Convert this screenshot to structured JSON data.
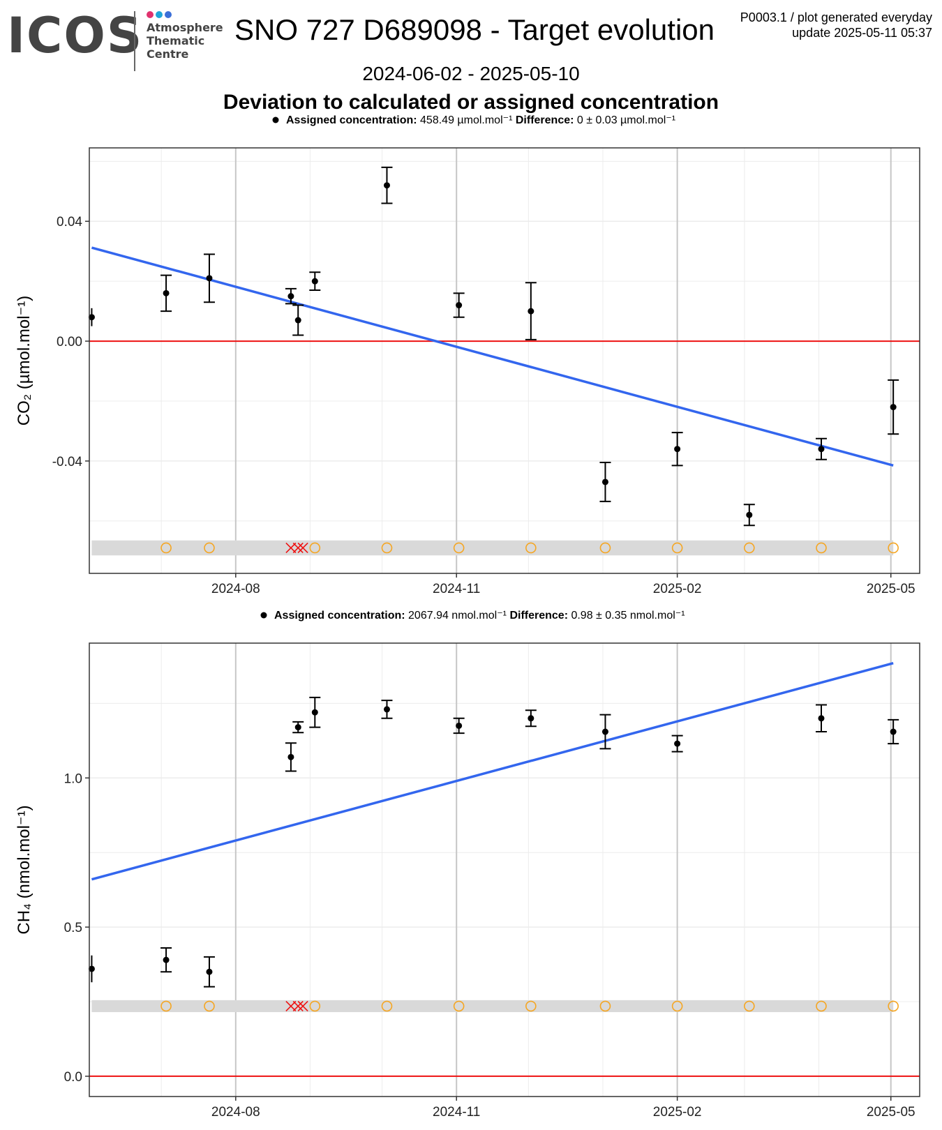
{
  "header": {
    "logo_text": "ICOS",
    "logo_sub": [
      "Atmosphere",
      "Thematic",
      "Centre"
    ],
    "logo_dot_colors": [
      "#e0326e",
      "#1fa6d8",
      "#3b6fd8"
    ],
    "title": "SNO 727 D689098 - Target evolution",
    "meta_line1": "P0003.1 / plot generated everyday",
    "meta_line2": "update  2025-05-11 05:37",
    "date_range": "2024-06-02 - 2025-05-10",
    "subtitle": "Deviation to calculated or assigned concentration"
  },
  "colors": {
    "trend": "#3366ee",
    "zero_line": "#ee1111",
    "points": "#000000",
    "flag_circle": "#f5a623",
    "flag_cross": "#ee1111",
    "flag_band": "#d9d9d9",
    "grid_major": "#c6c6c6",
    "grid_minor": "#ececec"
  },
  "x_ticks": [
    "2024-08",
    "2024-11",
    "2025-02",
    "2025-05"
  ],
  "chart_data": [
    {
      "type": "scatter",
      "gas": "CO2",
      "ylabel": "CO₂ (µmol.mol⁻¹)",
      "legend": {
        "label_bold": "Assigned concentration:",
        "label_value": "458.49 µmol.mol⁻¹",
        "diff_bold": "Difference:",
        "diff_value": "0 ± 0.03 µmol.mol⁻¹"
      },
      "xlim": [
        "2024-06-01",
        "2025-05-13"
      ],
      "ylim": [
        -0.0775,
        0.0645
      ],
      "yticks": [
        -0.04,
        0.0,
        0.04
      ],
      "ytick_labels": [
        "-0.04",
        "0.00",
        "0.04"
      ],
      "points": [
        {
          "date": "2024-06-02",
          "y": 0.008,
          "err": 0.003
        },
        {
          "date": "2024-07-03",
          "y": 0.016,
          "err": 0.006
        },
        {
          "date": "2024-07-21",
          "y": 0.021,
          "err": 0.008
        },
        {
          "date": "2024-08-24",
          "y": 0.015,
          "err": 0.0025
        },
        {
          "date": "2024-08-27",
          "y": 0.007,
          "err": 0.005
        },
        {
          "date": "2024-09-03",
          "y": 0.02,
          "err": 0.003
        },
        {
          "date": "2024-10-03",
          "y": 0.052,
          "err": 0.006
        },
        {
          "date": "2024-11-02",
          "y": 0.012,
          "err": 0.004
        },
        {
          "date": "2024-12-02",
          "y": 0.01,
          "err": 0.0095
        },
        {
          "date": "2025-01-02",
          "y": -0.047,
          "err": 0.0065
        },
        {
          "date": "2025-02-01",
          "y": -0.036,
          "err": 0.0055
        },
        {
          "date": "2025-03-03",
          "y": -0.058,
          "err": 0.0035
        },
        {
          "date": "2025-04-02",
          "y": -0.036,
          "err": 0.0035
        },
        {
          "date": "2025-05-02",
          "y": -0.022,
          "err": 0.009
        }
      ],
      "trend": {
        "start": {
          "date": "2024-06-02",
          "y": 0.0312
        },
        "end": {
          "date": "2025-05-02",
          "y": -0.0415
        }
      },
      "flag_y": -0.069,
      "flag_band": [
        -0.0715,
        -0.0665
      ],
      "flag_circles": [
        "2024-07-03",
        "2024-07-21",
        "2024-09-03",
        "2024-10-03",
        "2024-11-02",
        "2024-12-02",
        "2025-01-02",
        "2025-02-01",
        "2025-03-03",
        "2025-04-02",
        "2025-05-02"
      ],
      "flag_crosses": [
        "2024-08-24",
        "2024-08-27",
        "2024-08-29"
      ]
    },
    {
      "type": "scatter",
      "gas": "CH4",
      "ylabel": "CH₄ (nmol.mol⁻¹)",
      "legend": {
        "label_bold": "Assigned concentration:",
        "label_value": "2067.94 nmol.mol⁻¹",
        "diff_bold": "Difference:",
        "diff_value": "0.98 ± 0.35 nmol.mol⁻¹"
      },
      "xlim": [
        "2024-06-01",
        "2025-05-13"
      ],
      "ylim": [
        -0.068,
        1.452
      ],
      "yticks": [
        0.0,
        0.5,
        1.0
      ],
      "ytick_labels": [
        "0.0",
        "0.5",
        "1.0"
      ],
      "points": [
        {
          "date": "2024-06-02",
          "y": 0.36,
          "err": 0.045
        },
        {
          "date": "2024-07-03",
          "y": 0.39,
          "err": 0.04
        },
        {
          "date": "2024-07-21",
          "y": 0.35,
          "err": 0.05
        },
        {
          "date": "2024-08-24",
          "y": 1.07,
          "err": 0.047
        },
        {
          "date": "2024-08-27",
          "y": 1.17,
          "err": 0.018
        },
        {
          "date": "2024-09-03",
          "y": 1.22,
          "err": 0.05
        },
        {
          "date": "2024-10-03",
          "y": 1.23,
          "err": 0.03
        },
        {
          "date": "2024-11-02",
          "y": 1.175,
          "err": 0.025
        },
        {
          "date": "2024-12-02",
          "y": 1.2,
          "err": 0.027
        },
        {
          "date": "2025-01-02",
          "y": 1.155,
          "err": 0.057
        },
        {
          "date": "2025-02-01",
          "y": 1.115,
          "err": 0.027
        },
        {
          "date": "2025-04-02",
          "y": 1.2,
          "err": 0.045
        },
        {
          "date": "2025-05-02",
          "y": 1.155,
          "err": 0.04
        }
      ],
      "trend": {
        "start": {
          "date": "2024-06-02",
          "y": 0.66
        },
        "end": {
          "date": "2025-05-02",
          "y": 1.385
        }
      },
      "flag_y": 0.235,
      "flag_band": [
        0.215,
        0.255
      ],
      "flag_circles": [
        "2024-07-03",
        "2024-07-21",
        "2024-09-03",
        "2024-10-03",
        "2024-11-02",
        "2024-12-02",
        "2025-01-02",
        "2025-02-01",
        "2025-03-03",
        "2025-04-02",
        "2025-05-02"
      ],
      "flag_crosses": [
        "2024-08-24",
        "2024-08-27",
        "2024-08-29"
      ]
    }
  ]
}
